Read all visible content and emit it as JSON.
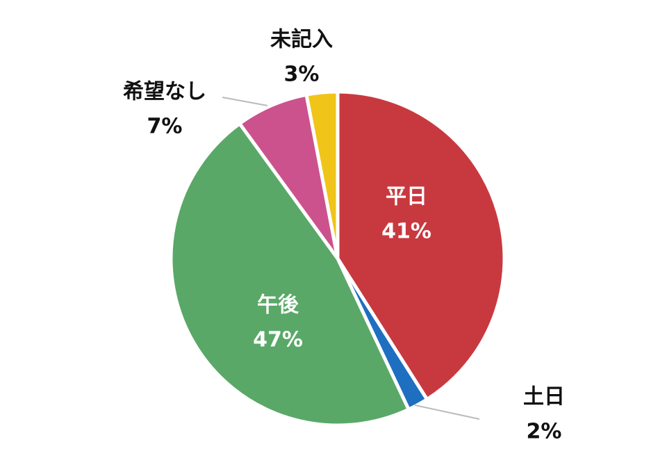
{
  "chart_data": {
    "type": "pie",
    "categories": [
      "平日",
      "土日",
      "午後",
      "希望なし",
      "未記入"
    ],
    "values": [
      41,
      2,
      47,
      7,
      3
    ],
    "value_labels": [
      "41%",
      "2%",
      "47%",
      "7%",
      "3%"
    ],
    "colors": [
      "#c8393f",
      "#1f6fc1",
      "#5aa867",
      "#cc528d",
      "#f0c418"
    ]
  }
}
